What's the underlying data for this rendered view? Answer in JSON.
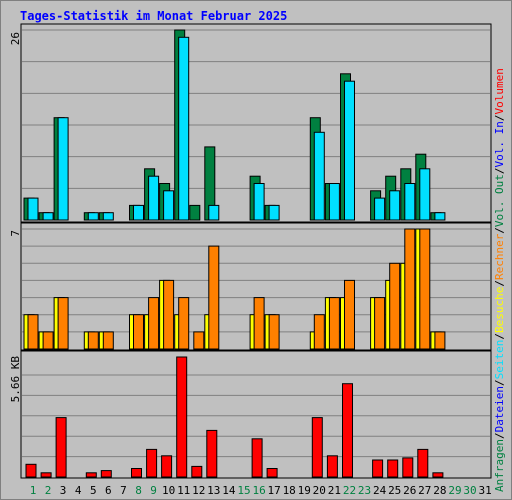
{
  "chart_data": {
    "type": "bar",
    "title": "Tages-Statistik im Monat Februar 2025",
    "categories": [
      "1",
      "2",
      "3",
      "4",
      "5",
      "6",
      "7",
      "8",
      "9",
      "10",
      "11",
      "12",
      "13",
      "14",
      "15",
      "16",
      "17",
      "18",
      "19",
      "20",
      "21",
      "22",
      "23",
      "24",
      "25",
      "26",
      "27",
      "28",
      "29",
      "30",
      "31"
    ],
    "weekend_days": [
      1,
      2,
      8,
      9,
      15,
      16,
      22,
      23,
      29,
      30
    ],
    "legend": {
      "labels": [
        "Anfragen",
        "/",
        "Dateien",
        "/",
        "Seiten",
        "/",
        "Besuche",
        "/",
        "Rechner",
        "/",
        "Vol. Out",
        "/",
        "Vol. In",
        "/",
        "Volumen"
      ],
      "colors": [
        "#008040",
        "#000000",
        "#0000ff",
        "#000000",
        "#00e0ff",
        "#000000",
        "#ffff00",
        "#000000",
        "#ff8000",
        "#000000",
        "#008040",
        "#000000",
        "#0000ff",
        "#000000",
        "#ff0000"
      ],
      "placement": "right"
    },
    "panels": [
      {
        "name": "hits",
        "ymax_label": "26",
        "ymax": 26,
        "series": [
          {
            "name": "Anfragen",
            "color": "#008040",
            "values": [
              3,
              1,
              14,
              0,
              1,
              1,
              0,
              2,
              7,
              5,
              26,
              2,
              10,
              0,
              0,
              6,
              2,
              0,
              0,
              14,
              5,
              20,
              0,
              4,
              6,
              7,
              9,
              1,
              0,
              0,
              0
            ]
          },
          {
            "name": "Dateien",
            "color": "#00e0ff",
            "values": [
              3,
              1,
              14,
              0,
              1,
              1,
              0,
              2,
              6,
              4,
              25,
              0,
              2,
              0,
              0,
              5,
              2,
              0,
              0,
              12,
              5,
              19,
              0,
              3,
              4,
              5,
              7,
              1,
              0,
              0,
              0
            ]
          }
        ]
      },
      {
        "name": "visits",
        "ymax_label": "7",
        "ymax": 7,
        "series": [
          {
            "name": "Besuche",
            "color": "#ffff00",
            "values": [
              2,
              1,
              3,
              0,
              1,
              1,
              0,
              2,
              2,
              4,
              2,
              0,
              2,
              0,
              0,
              2,
              2,
              0,
              0,
              1,
              3,
              3,
              0,
              3,
              4,
              5,
              7,
              1,
              0,
              0,
              0
            ]
          },
          {
            "name": "Rechner",
            "color": "#ff8000",
            "values": [
              2,
              1,
              3,
              0,
              1,
              1,
              0,
              2,
              3,
              4,
              3,
              1,
              6,
              0,
              0,
              3,
              2,
              0,
              0,
              2,
              3,
              4,
              0,
              3,
              5,
              7,
              7,
              1,
              0,
              0,
              0
            ]
          }
        ]
      },
      {
        "name": "volume",
        "ymax_label": "5.66 KB",
        "ymax": 5.66,
        "series": [
          {
            "name": "Volumen",
            "color": "#ff0000",
            "values": [
              0.6,
              0.2,
              2.8,
              0,
              0.2,
              0.3,
              0,
              0.4,
              1.3,
              1.0,
              5.66,
              0.5,
              2.2,
              0,
              0,
              1.8,
              0.4,
              0,
              0,
              2.8,
              1.0,
              4.4,
              0,
              0.8,
              0.8,
              0.9,
              1.3,
              0.2,
              0,
              0,
              0
            ]
          }
        ]
      }
    ]
  }
}
